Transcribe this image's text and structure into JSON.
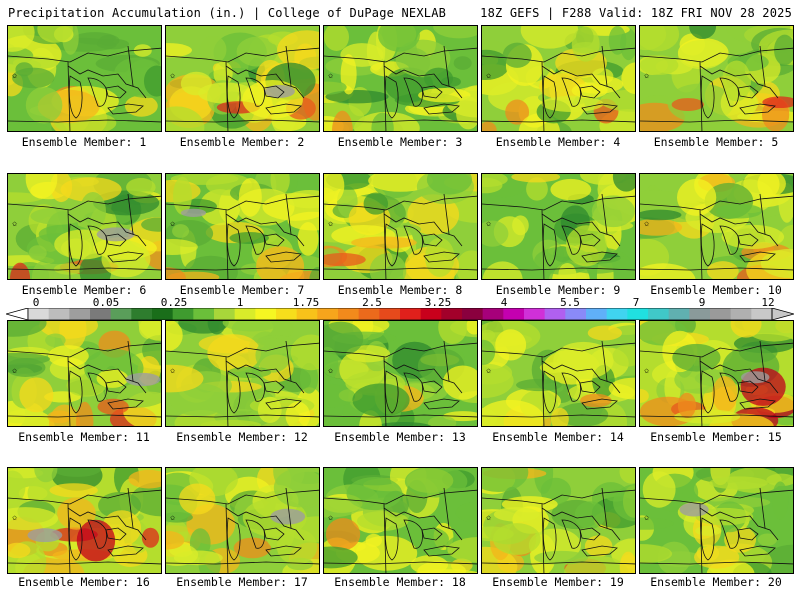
{
  "header": {
    "title": "Precipitation Accumulation (in.) | College of DuPage NEXLAB",
    "valid": "18Z GEFS | F288 Valid: 18Z FRI NOV 28 2025"
  },
  "colorbar": {
    "labels": [
      "0",
      "0.05",
      "0.25",
      "1",
      "1.75",
      "2.5",
      "3.25",
      "4",
      "5.5",
      "7",
      "9",
      "12"
    ],
    "colors": [
      "#d9d9d9",
      "#bdbdbd",
      "#9e9e9e",
      "#7a7a7a",
      "#5a9e5a",
      "#2e7d2e",
      "#1a6e1a",
      "#3f9b2f",
      "#6bbf3a",
      "#a8d63a",
      "#d9ec2a",
      "#f6f622",
      "#f7de1c",
      "#f8c21a",
      "#f7a51c",
      "#f28a1c",
      "#ec6a1c",
      "#e64a1c",
      "#e0201c",
      "#c8001c",
      "#a2002a",
      "#8a003e",
      "#a6007a",
      "#c400b0",
      "#d030d8",
      "#b060f0",
      "#8a8af8",
      "#60b0f8",
      "#40d4f0",
      "#20e0e0",
      "#40c8c8",
      "#60b0b0",
      "#8a9a9a",
      "#9a9a9a",
      "#b0b0b0",
      "#c8c8c8"
    ]
  },
  "members": [
    {
      "label": "Ensemble Member: 1"
    },
    {
      "label": "Ensemble Member: 2"
    },
    {
      "label": "Ensemble Member: 3"
    },
    {
      "label": "Ensemble Member: 4"
    },
    {
      "label": "Ensemble Member: 5"
    },
    {
      "label": "Ensemble Member: 6"
    },
    {
      "label": "Ensemble Member: 7"
    },
    {
      "label": "Ensemble Member: 8"
    },
    {
      "label": "Ensemble Member: 9"
    },
    {
      "label": "Ensemble Member: 10"
    },
    {
      "label": "Ensemble Member: 11"
    },
    {
      "label": "Ensemble Member: 12"
    },
    {
      "label": "Ensemble Member: 13"
    },
    {
      "label": "Ensemble Member: 14"
    },
    {
      "label": "Ensemble Member: 15"
    },
    {
      "label": "Ensemble Member: 16"
    },
    {
      "label": "Ensemble Member: 17"
    },
    {
      "label": "Ensemble Member: 18"
    },
    {
      "label": "Ensemble Member: 19"
    },
    {
      "label": "Ensemble Member: 20"
    }
  ]
}
